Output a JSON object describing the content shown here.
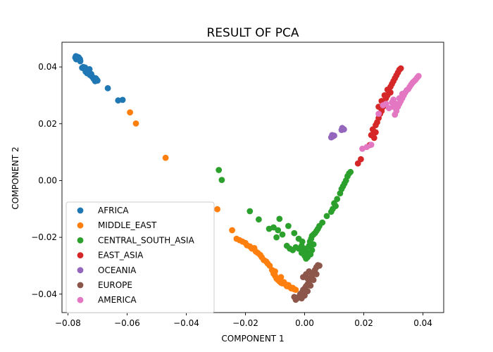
{
  "chart_data": {
    "type": "scatter",
    "title": "RESULT OF PCA",
    "xlabel": "COMPONENT 1",
    "ylabel": "COMPONENT 2",
    "xlim": [
      -0.082,
      0.047
    ],
    "ylim": [
      -0.0465,
      0.0487
    ],
    "xticks": [
      -0.08,
      -0.06,
      -0.04,
      -0.02,
      0.0,
      0.02,
      0.04
    ],
    "xtick_labels": [
      "−0.08",
      "−0.06",
      "−0.04",
      "−0.02",
      "0.00",
      "0.02",
      "0.04"
    ],
    "yticks": [
      -0.04,
      -0.02,
      0.0,
      0.02,
      0.04
    ],
    "ytick_labels": [
      "−0.04",
      "−0.02",
      "0.00",
      "0.02",
      "0.04"
    ],
    "grid": false,
    "legend_position": "lower-left",
    "series": [
      {
        "name": "AFRICA",
        "color": "#1f77b4",
        "points": [
          [
            -0.0775,
            0.0433
          ],
          [
            -0.0773,
            0.0438
          ],
          [
            -0.077,
            0.0432
          ],
          [
            -0.0768,
            0.0436
          ],
          [
            -0.0766,
            0.0428
          ],
          [
            -0.0764,
            0.0434
          ],
          [
            -0.0761,
            0.0425
          ],
          [
            -0.0762,
            0.0431
          ],
          [
            -0.0759,
            0.0427
          ],
          [
            -0.0772,
            0.0427
          ],
          [
            -0.0758,
            0.042
          ],
          [
            -0.0752,
            0.0397
          ],
          [
            -0.0748,
            0.04
          ],
          [
            -0.0745,
            0.0394
          ],
          [
            -0.0742,
            0.0398
          ],
          [
            -0.0738,
            0.0392
          ],
          [
            -0.0735,
            0.0389
          ],
          [
            -0.0733,
            0.0384
          ],
          [
            -0.073,
            0.0388
          ],
          [
            -0.0728,
            0.0378
          ],
          [
            -0.0726,
            0.0372
          ],
          [
            -0.0723,
            0.037
          ],
          [
            -0.0721,
            0.0375
          ],
          [
            -0.0718,
            0.0365
          ],
          [
            -0.0715,
            0.0363
          ],
          [
            -0.0713,
            0.0358
          ],
          [
            -0.071,
            0.0355
          ],
          [
            -0.0708,
            0.035
          ],
          [
            -0.0706,
            0.036
          ],
          [
            -0.0703,
            0.0356
          ],
          [
            -0.07,
            0.0352
          ],
          [
            -0.0727,
            0.0392
          ],
          [
            -0.0735,
            0.0378
          ],
          [
            -0.074,
            0.0383
          ],
          [
            -0.0665,
            0.0325
          ],
          [
            -0.063,
            0.0282
          ],
          [
            -0.0615,
            0.0284
          ]
        ]
      },
      {
        "name": "MIDDLE_EAST",
        "color": "#ff7f0e",
        "points": [
          [
            -0.059,
            0.024
          ],
          [
            -0.057,
            0.0201
          ],
          [
            -0.047,
            0.008
          ],
          [
            -0.0295,
            -0.0101
          ],
          [
            -0.0245,
            -0.0175
          ],
          [
            -0.023,
            -0.0205
          ],
          [
            -0.022,
            -0.021
          ],
          [
            -0.021,
            -0.0215
          ],
          [
            -0.02,
            -0.022
          ],
          [
            -0.0195,
            -0.0228
          ],
          [
            -0.0185,
            -0.0232
          ],
          [
            -0.0178,
            -0.024
          ],
          [
            -0.017,
            -0.0238
          ],
          [
            -0.0165,
            -0.025
          ],
          [
            -0.0158,
            -0.0255
          ],
          [
            -0.015,
            -0.0262
          ],
          [
            -0.0145,
            -0.027
          ],
          [
            -0.0138,
            -0.028
          ],
          [
            -0.013,
            -0.0285
          ],
          [
            -0.0125,
            -0.0292
          ],
          [
            -0.0118,
            -0.03
          ],
          [
            -0.011,
            -0.0315
          ],
          [
            -0.0105,
            -0.0328
          ],
          [
            -0.01,
            -0.0335
          ],
          [
            -0.0095,
            -0.0345
          ],
          [
            -0.009,
            -0.035
          ],
          [
            -0.0085,
            -0.0355
          ],
          [
            -0.008,
            -0.036
          ],
          [
            -0.0075,
            -0.0362
          ],
          [
            -0.007,
            -0.0358
          ],
          [
            -0.0065,
            -0.0365
          ],
          [
            -0.006,
            -0.0372
          ],
          [
            -0.0055,
            -0.0368
          ],
          [
            -0.005,
            -0.0375
          ],
          [
            -0.0045,
            -0.038
          ],
          [
            -0.004,
            -0.0378
          ],
          [
            -0.0035,
            -0.0383
          ],
          [
            -0.003,
            -0.0385
          ],
          [
            -0.008,
            -0.034
          ],
          [
            -0.01,
            -0.032
          ]
        ]
      },
      {
        "name": "CENTRAL_SOUTH_ASIA",
        "color": "#2ca02c",
        "points": [
          [
            -0.029,
            0.0037
          ],
          [
            -0.028,
            0.0002
          ],
          [
            -0.0185,
            -0.0108
          ],
          [
            -0.0155,
            -0.0137
          ],
          [
            -0.012,
            -0.017
          ],
          [
            -0.0105,
            -0.0165
          ],
          [
            -0.009,
            -0.0175
          ],
          [
            -0.0085,
            -0.0135
          ],
          [
            -0.0095,
            -0.02
          ],
          [
            -0.0075,
            -0.019
          ],
          [
            -0.0055,
            -0.016
          ],
          [
            -0.0035,
            -0.0185
          ],
          [
            -0.002,
            -0.0205
          ],
          [
            -0.001,
            -0.023
          ],
          [
            -0.0005,
            -0.0245
          ],
          [
            0.0,
            -0.025
          ],
          [
            0.0005,
            -0.024
          ],
          [
            0.001,
            -0.0255
          ],
          [
            0.0015,
            -0.023
          ],
          [
            0.0018,
            -0.0215
          ],
          [
            0.0022,
            -0.0205
          ],
          [
            0.0025,
            -0.0195
          ],
          [
            0.003,
            -0.019
          ],
          [
            0.0035,
            -0.0185
          ],
          [
            0.004,
            -0.0178
          ],
          [
            0.0045,
            -0.017
          ],
          [
            0.005,
            -0.016
          ],
          [
            0.006,
            -0.0148
          ],
          [
            0.0075,
            -0.0125
          ],
          [
            0.009,
            -0.011
          ],
          [
            0.01,
            -0.008
          ],
          [
            0.011,
            -0.0065
          ],
          [
            0.012,
            -0.0045
          ],
          [
            0.0125,
            -0.003
          ],
          [
            0.013,
            -0.002
          ],
          [
            0.0135,
            -0.001
          ],
          [
            0.014,
            0.0
          ],
          [
            0.0145,
            0.0015
          ],
          [
            0.015,
            0.0025
          ],
          [
            0.0155,
            0.003
          ],
          [
            0.003,
            -0.0225
          ],
          [
            0.0025,
            -0.0245
          ],
          [
            0.002,
            -0.026
          ],
          [
            0.001,
            -0.027
          ],
          [
            0.0,
            -0.0265
          ],
          [
            -0.001,
            -0.0255
          ],
          [
            -0.002,
            -0.024
          ],
          [
            -0.003,
            -0.0235
          ],
          [
            -0.004,
            -0.0245
          ],
          [
            -0.005,
            -0.024
          ],
          [
            -0.006,
            -0.023
          ],
          [
            -0.0008,
            -0.0215
          ],
          [
            0.0105,
            -0.009
          ],
          [
            0.0095,
            -0.01
          ],
          [
            0.0005,
            -0.0275
          ]
        ]
      },
      {
        "name": "EAST_ASIA",
        "color": "#d62728",
        "points": [
          [
            0.018,
            0.006
          ],
          [
            0.019,
            0.0075
          ],
          [
            0.022,
            0.0125
          ],
          [
            0.0235,
            0.015
          ],
          [
            0.024,
            0.017
          ],
          [
            0.0225,
            0.016
          ],
          [
            0.023,
            0.018
          ],
          [
            0.024,
            0.0195
          ],
          [
            0.0245,
            0.0205
          ],
          [
            0.025,
            0.022
          ],
          [
            0.0255,
            0.0235
          ],
          [
            0.026,
            0.0245
          ],
          [
            0.0265,
            0.026
          ],
          [
            0.027,
            0.0275
          ],
          [
            0.0275,
            0.029
          ],
          [
            0.028,
            0.03
          ],
          [
            0.0285,
            0.0315
          ],
          [
            0.029,
            0.033
          ],
          [
            0.0295,
            0.034
          ],
          [
            0.03,
            0.035
          ],
          [
            0.0305,
            0.036
          ],
          [
            0.031,
            0.037
          ],
          [
            0.0315,
            0.038
          ],
          [
            0.032,
            0.039
          ],
          [
            0.0325,
            0.0395
          ],
          [
            0.027,
            0.03
          ],
          [
            0.028,
            0.032
          ],
          [
            0.026,
            0.028
          ],
          [
            0.025,
            0.026
          ],
          [
            0.029,
            0.031
          ]
        ]
      },
      {
        "name": "OCEANIA",
        "color": "#9467bd",
        "points": [
          [
            0.009,
            0.0152
          ],
          [
            0.0095,
            0.0155
          ],
          [
            0.01,
            0.0158
          ],
          [
            0.0093,
            0.016
          ],
          [
            0.0125,
            0.0178
          ],
          [
            0.013,
            0.0182
          ],
          [
            0.0127,
            0.0185
          ],
          [
            0.0133,
            0.018
          ]
        ]
      },
      {
        "name": "EUROPE",
        "color": "#8c564b",
        "points": [
          [
            -0.003,
            -0.042
          ],
          [
            -0.0025,
            -0.0415
          ],
          [
            -0.002,
            -0.041
          ],
          [
            -0.0015,
            -0.04
          ],
          [
            -0.001,
            -0.0395
          ],
          [
            -0.0005,
            -0.0385
          ],
          [
            0.0,
            -0.038
          ],
          [
            0.0005,
            -0.0372
          ],
          [
            0.001,
            -0.0365
          ],
          [
            0.0015,
            -0.0355
          ],
          [
            0.002,
            -0.0345
          ],
          [
            0.0025,
            -0.0335
          ],
          [
            0.003,
            -0.0325
          ],
          [
            0.0035,
            -0.0315
          ],
          [
            0.004,
            -0.0305
          ],
          [
            0.0045,
            -0.0298
          ],
          [
            0.005,
            -0.03
          ],
          [
            -0.001,
            -0.0415
          ],
          [
            0.0,
            -0.0405
          ],
          [
            0.001,
            -0.039
          ],
          [
            0.002,
            -0.037
          ],
          [
            0.003,
            -0.035
          ],
          [
            0.004,
            -0.033
          ],
          [
            -0.0035,
            -0.041
          ],
          [
            -0.0005,
            -0.034
          ],
          [
            0.0005,
            -0.033
          ],
          [
            0.001,
            -0.0345
          ],
          [
            0.0015,
            -0.032
          ]
        ]
      },
      {
        "name": "AMERICA",
        "color": "#e377c2",
        "points": [
          [
            0.0195,
            0.0112
          ],
          [
            0.021,
            0.0118
          ],
          [
            0.0225,
            0.0126
          ],
          [
            0.025,
            0.0235
          ],
          [
            0.0265,
            0.0265
          ],
          [
            0.0275,
            0.027
          ],
          [
            0.0285,
            0.0255
          ],
          [
            0.03,
            0.0285
          ],
          [
            0.0305,
            0.0232
          ],
          [
            0.031,
            0.0245
          ],
          [
            0.0315,
            0.026
          ],
          [
            0.032,
            0.027
          ],
          [
            0.0325,
            0.028
          ],
          [
            0.033,
            0.029
          ],
          [
            0.0335,
            0.03
          ],
          [
            0.034,
            0.031
          ],
          [
            0.0345,
            0.0318
          ],
          [
            0.035,
            0.0322
          ],
          [
            0.0355,
            0.033
          ],
          [
            0.036,
            0.0338
          ],
          [
            0.0365,
            0.0345
          ],
          [
            0.037,
            0.035
          ],
          [
            0.0375,
            0.0355
          ],
          [
            0.038,
            0.0362
          ],
          [
            0.0385,
            0.0368
          ],
          [
            0.031,
            0.027
          ],
          [
            0.03,
            0.026
          ],
          [
            0.032,
            0.029
          ],
          [
            0.0295,
            0.0275
          ],
          [
            0.033,
            0.0305
          ]
        ]
      }
    ]
  }
}
